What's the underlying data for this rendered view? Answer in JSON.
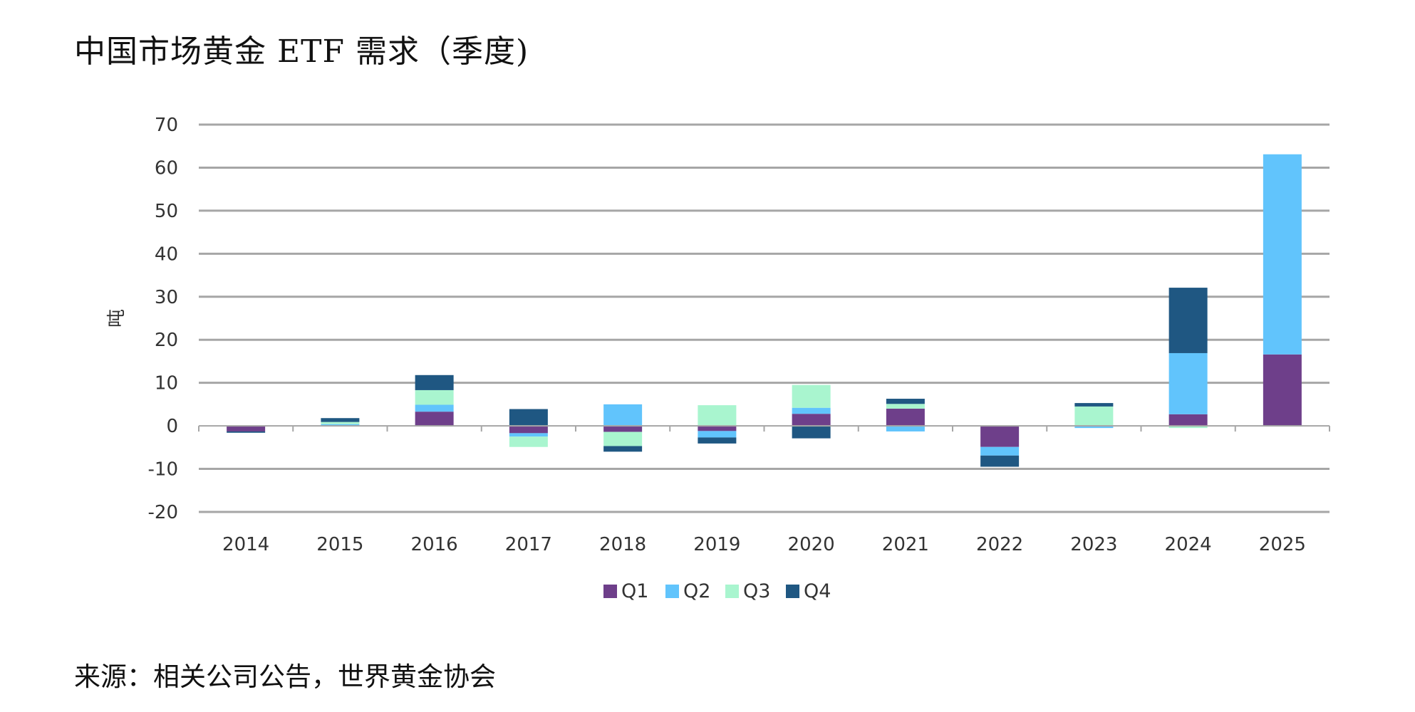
{
  "page": {
    "title": "中国市场黄金 ETF 需求（季度)",
    "source": "来源：相关公司公告，世界黄金协会"
  },
  "chart_data": {
    "type": "bar",
    "stacked": true,
    "title": "中国市场黄金 ETF 需求（季度)",
    "xlabel": "",
    "ylabel": "吨",
    "ylim": [
      -20,
      70
    ],
    "yticks": [
      70,
      60,
      50,
      40,
      30,
      20,
      10,
      0,
      -10,
      -20
    ],
    "grid": true,
    "legend_position": "bottom",
    "categories": [
      "2014",
      "2015",
      "2016",
      "2017",
      "2018",
      "2019",
      "2020",
      "2021",
      "2022",
      "2023",
      "2024",
      "2025"
    ],
    "series": [
      {
        "name": "Q1",
        "color": "#6e3f8a",
        "values": [
          -1.3,
          0,
          3.3,
          -1.7,
          -1.4,
          -1.2,
          2.8,
          4.0,
          -4.9,
          0,
          2.7,
          16.6
        ]
      },
      {
        "name": "Q2",
        "color": "#61c4fc",
        "values": [
          0,
          0.4,
          1.6,
          -0.8,
          5.0,
          -1.5,
          1.4,
          -1.3,
          -2.0,
          -0.5,
          14.2,
          46.5
        ]
      },
      {
        "name": "Q3",
        "color": "#a9f5cf",
        "values": [
          0,
          0.5,
          3.4,
          -2.4,
          -3.3,
          4.8,
          5.3,
          1.1,
          0,
          4.5,
          -0.5,
          0
        ]
      },
      {
        "name": "Q4",
        "color": "#1f5782",
        "values": [
          -0.3,
          0.9,
          3.5,
          3.9,
          -1.3,
          -1.4,
          -2.9,
          1.2,
          -2.6,
          0.8,
          15.2,
          0
        ]
      }
    ]
  }
}
